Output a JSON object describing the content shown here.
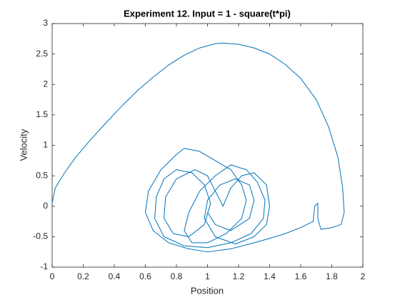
{
  "chart_data": {
    "type": "line",
    "title": "Experiment 12. Input = 1 - square(t*pi)",
    "xlabel": "Position",
    "ylabel": "Velocity",
    "color": "#0072bd",
    "xlim": [
      0,
      2
    ],
    "xticks": [
      0,
      0.2,
      0.4,
      0.6,
      0.8,
      1,
      1.2,
      1.4,
      1.6,
      1.8,
      2
    ],
    "ylim": [
      -1,
      3
    ],
    "yticks": [
      -1,
      -0.5,
      0,
      0.5,
      1,
      1.5,
      2,
      2.5,
      3
    ],
    "grid": false,
    "x": [
      0,
      0.02,
      0.08,
      0.15,
      0.25,
      0.35,
      0.45,
      0.55,
      0.65,
      0.75,
      0.85,
      0.95,
      1.05,
      1.1,
      1.2,
      1.3,
      1.4,
      1.5,
      1.6,
      1.7,
      1.78,
      1.84,
      1.87,
      1.88,
      1.86,
      1.8,
      1.73,
      1.71,
      1.71,
      1.69,
      1.68,
      1.6,
      1.5,
      1.37,
      1.3,
      1.15,
      1.0,
      0.88,
      0.75,
      0.65,
      0.6,
      0.62,
      0.7,
      0.8,
      0.85,
      0.95,
      1.05,
      1.15,
      1.22,
      1.25,
      1.22,
      1.12,
      1.0,
      0.9,
      0.85,
      0.88,
      0.95,
      1.05,
      1.15,
      1.25,
      1.32,
      1.37,
      1.36,
      1.28,
      1.15,
      1.0,
      0.85,
      0.72,
      0.66,
      0.67,
      0.72,
      0.8,
      0.9,
      0.98,
      1.02,
      0.98,
      0.88,
      0.78,
      0.72,
      0.73,
      0.8,
      0.92,
      1.0,
      1.05,
      1.1,
      1.15,
      1.22,
      1.3,
      1.38,
      1.4,
      1.38,
      1.3,
      1.18,
      1.05,
      0.98,
      1.0,
      1.08,
      1.18,
      1.27,
      1.3,
      1.27,
      1.15,
      1.05,
      1.0
    ],
    "values": [
      0.05,
      0.3,
      0.55,
      0.8,
      1.1,
      1.38,
      1.65,
      1.9,
      2.12,
      2.32,
      2.48,
      2.6,
      2.67,
      2.68,
      2.66,
      2.6,
      2.5,
      2.33,
      2.1,
      1.75,
      1.3,
      0.8,
      0.3,
      -0.1,
      -0.3,
      -0.35,
      -0.38,
      -0.2,
      0.05,
      0.0,
      -0.25,
      -0.35,
      -0.45,
      -0.55,
      -0.6,
      -0.7,
      -0.75,
      -0.7,
      -0.6,
      -0.4,
      -0.1,
      0.25,
      0.6,
      0.85,
      0.95,
      0.9,
      0.75,
      0.6,
      0.35,
      0.1,
      -0.2,
      -0.45,
      -0.6,
      -0.6,
      -0.4,
      -0.1,
      0.25,
      0.5,
      0.68,
      0.6,
      0.4,
      0.1,
      -0.2,
      -0.45,
      -0.6,
      -0.68,
      -0.65,
      -0.5,
      -0.2,
      0.15,
      0.45,
      0.6,
      0.55,
      0.35,
      0.05,
      -0.3,
      -0.5,
      -0.45,
      -0.2,
      0.15,
      0.45,
      0.6,
      0.5,
      0.25,
      0.0,
      0.3,
      0.5,
      0.55,
      0.35,
      0.0,
      -0.3,
      -0.5,
      -0.62,
      -0.5,
      -0.2,
      0.1,
      0.35,
      0.45,
      0.35,
      0.1,
      -0.2,
      -0.4,
      -0.3,
      -0.1
    ]
  }
}
